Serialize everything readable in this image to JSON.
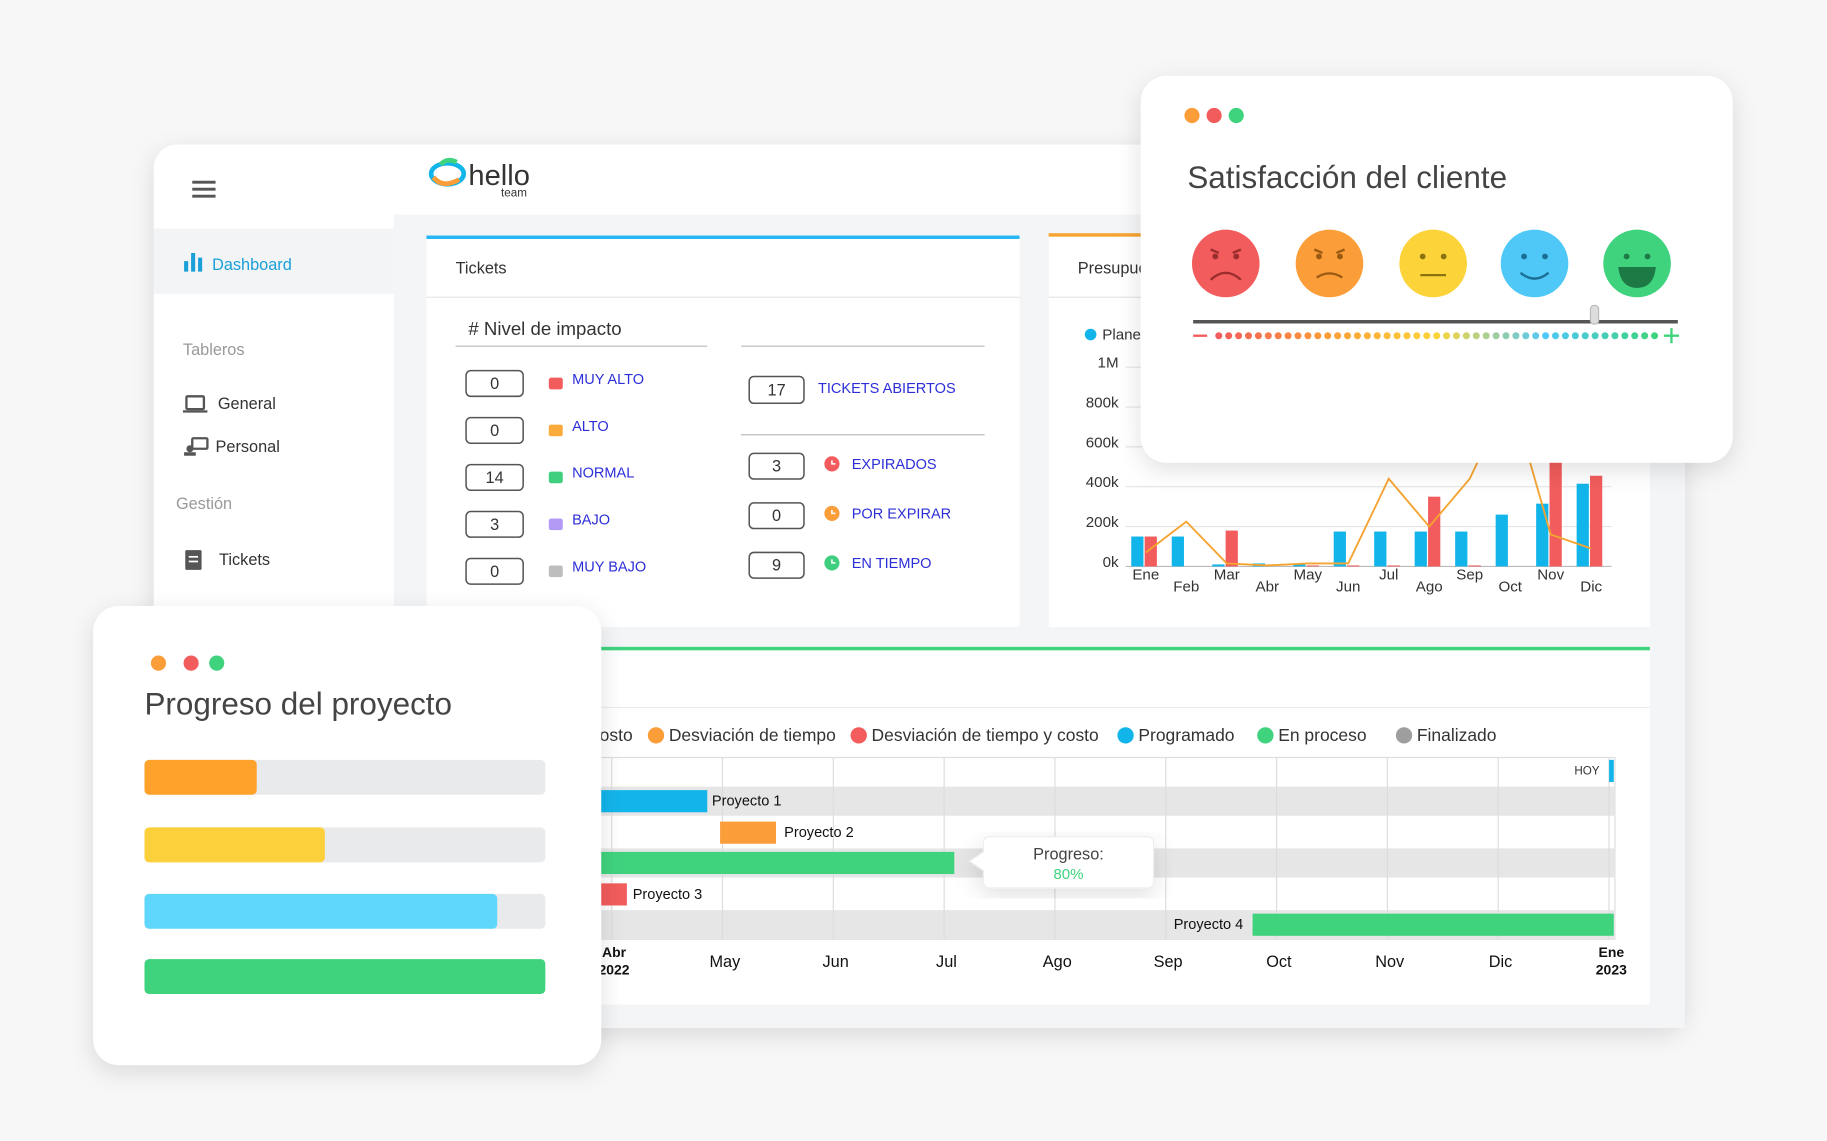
{
  "app": {
    "logo": "hello",
    "logo_sub": "team"
  },
  "sidebar": {
    "active": "Dashboard",
    "sections": [
      {
        "title": "Tableros",
        "items": [
          "General",
          "Personal"
        ]
      },
      {
        "title": "Gestión",
        "items": [
          "Tickets"
        ]
      }
    ]
  },
  "tickets": {
    "title": "Tickets",
    "column_title": "#  Nivel de impacto",
    "impact": [
      {
        "count": 0,
        "label": "MUY ALTO",
        "color": "#f25c5c"
      },
      {
        "count": 0,
        "label": "ALTO",
        "color": "#fbab3c"
      },
      {
        "count": 14,
        "label": "NORMAL",
        "color": "#3fcf7e"
      },
      {
        "count": 3,
        "label": "BAJO",
        "color": "#b39af5"
      },
      {
        "count": 0,
        "label": "MUY BAJO",
        "color": "#bdbdbd"
      }
    ],
    "open": {
      "count": 17,
      "label": "TICKETS ABIERTOS"
    },
    "status": [
      {
        "count": 3,
        "label": "EXPIRADOS",
        "color": "#f25c5c"
      },
      {
        "count": 0,
        "label": "POR EXPIRAR",
        "color": "#fb9d38"
      },
      {
        "count": 9,
        "label": "EN TIEMPO",
        "color": "#3fcf7e"
      }
    ]
  },
  "budget": {
    "title": "Presupuesto",
    "chart": {
      "type": "bar",
      "categories": [
        "Ene",
        "Feb",
        "Mar",
        "Abr",
        "May",
        "Jun",
        "Jul",
        "Ago",
        "Sep",
        "Oct",
        "Nov",
        "Dic"
      ],
      "series": [
        {
          "name": "Planeado",
          "color": "#12b5ea",
          "values": [
            150000,
            150000,
            10000,
            15000,
            10000,
            175000,
            175000,
            175000,
            175000,
            260000,
            315000,
            415000
          ]
        },
        {
          "color": "#f25c5c",
          "values": [
            150000,
            0,
            180000,
            0,
            5000,
            5000,
            5000,
            350000,
            5000,
            0,
            530000,
            455000
          ]
        },
        {
          "type": "line",
          "color": "#f5a431",
          "values": [
            70000,
            225000,
            15000,
            5000,
            15000,
            15000,
            440000,
            200000,
            440000,
            870000,
            160000,
            90000
          ]
        }
      ],
      "ylim": [
        0,
        1000000
      ],
      "yticks": [
        {
          "value": 0,
          "label": "0k"
        },
        {
          "value": 200000,
          "label": "200k"
        },
        {
          "value": 400000,
          "label": "400k"
        },
        {
          "value": 600000,
          "label": "600k"
        },
        {
          "value": 800000,
          "label": "800k"
        },
        {
          "value": 1000000,
          "label": "1M"
        }
      ],
      "grid": true
    }
  },
  "gantt": {
    "legend": [
      {
        "label": "Desviación de costo",
        "color": "#fcd43a"
      },
      {
        "label": "Desviación de tiempo",
        "color": "#fb9d38"
      },
      {
        "label": "Desviación de tiempo y costo",
        "color": "#f25c5c"
      },
      {
        "label": "Programado",
        "color": "#12b5ea"
      },
      {
        "label": "En proceso",
        "color": "#3fd37e"
      },
      {
        "label": "Finalizado",
        "color": "#9e9e9e"
      }
    ],
    "today": "HOY",
    "months": [
      {
        "label": "Abr",
        "year": "2022"
      },
      {
        "label": "May"
      },
      {
        "label": "Jun"
      },
      {
        "label": "Jul"
      },
      {
        "label": "Ago"
      },
      {
        "label": "Sep"
      },
      {
        "label": "Oct"
      },
      {
        "label": "Nov"
      },
      {
        "label": "Dic"
      },
      {
        "label": "Ene",
        "year": "2023"
      }
    ],
    "projects": [
      "Proyecto 1",
      "Proyecto 2",
      "Proyecto 3",
      "Proyecto 4"
    ],
    "tooltip": {
      "label": "Progreso:",
      "value": "80%"
    }
  },
  "satisfaction": {
    "title": "Satisfacción del cliente"
  },
  "progress": {
    "title": "Progreso del proyecto",
    "bars": [
      {
        "color": "#ffa22b",
        "value": 28
      },
      {
        "color": "#fbd03b",
        "value": 45
      },
      {
        "color": "#5fd6fb",
        "value": 88
      },
      {
        "color": "#3fd37e",
        "value": 100
      }
    ]
  }
}
